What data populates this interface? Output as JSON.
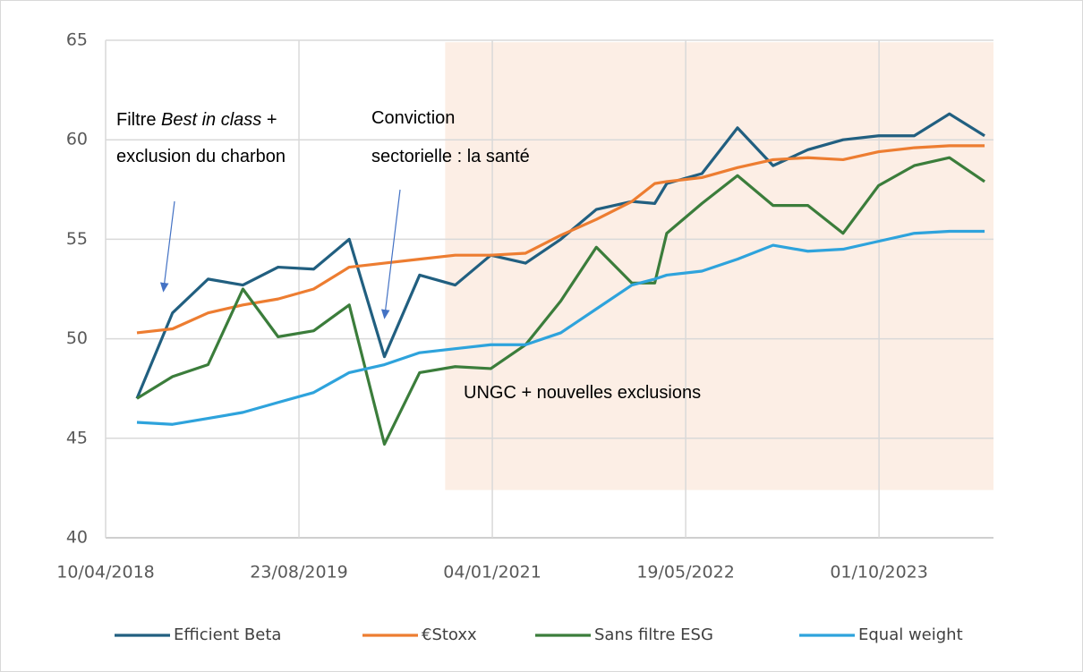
{
  "chart_data": {
    "type": "line",
    "x": [
      "30/06/2018",
      "30/09/2018",
      "31/12/2018",
      "31/03/2019",
      "30/06/2019",
      "30/09/2019",
      "31/12/2019",
      "31/03/2020",
      "30/06/2020",
      "30/09/2020",
      "31/12/2020",
      "31/03/2021",
      "30/06/2021",
      "30/09/2021",
      "31/12/2021",
      "28/02/2022",
      "31/03/2022",
      "30/06/2022",
      "30/09/2022",
      "31/12/2022",
      "31/03/2023",
      "30/06/2023",
      "30/09/2023",
      "31/12/2023",
      "31/03/2024",
      "30/06/2024"
    ],
    "series": [
      {
        "name": "Efficient Beta",
        "color": "#215f80",
        "values": [
          47.0,
          51.3,
          53.0,
          52.7,
          53.6,
          53.5,
          55.0,
          49.1,
          53.2,
          52.7,
          54.2,
          53.8,
          55.0,
          56.5,
          56.9,
          56.8,
          57.8,
          58.3,
          60.6,
          58.7,
          59.5,
          60.0,
          60.2,
          60.2,
          61.3,
          60.2
        ]
      },
      {
        "name": "€Stoxx",
        "color": "#ed7d31",
        "values": [
          50.3,
          50.5,
          51.3,
          51.7,
          52.0,
          52.5,
          53.6,
          53.8,
          54.0,
          54.2,
          54.2,
          54.3,
          55.2,
          56.0,
          56.9,
          57.8,
          57.9,
          58.1,
          58.6,
          59.0,
          59.1,
          59.0,
          59.4,
          59.6,
          59.7,
          59.7
        ]
      },
      {
        "name": "Sans filtre ESG",
        "color": "#3b7d3b",
        "values": [
          47.0,
          48.1,
          48.7,
          52.5,
          50.1,
          50.4,
          51.7,
          44.7,
          48.3,
          48.6,
          48.5,
          49.7,
          51.9,
          54.6,
          52.8,
          52.8,
          55.3,
          56.8,
          58.2,
          56.7,
          56.7,
          55.3,
          57.7,
          58.7,
          59.1,
          57.9
        ]
      },
      {
        "name": "Equal weight",
        "color": "#2ea3dc",
        "values": [
          45.8,
          45.7,
          46.0,
          46.3,
          46.8,
          47.3,
          48.3,
          48.7,
          49.3,
          49.5,
          49.7,
          49.7,
          50.3,
          51.5,
          52.7,
          53.0,
          53.2,
          53.4,
          54.0,
          54.7,
          54.4,
          54.5,
          54.9,
          55.3,
          55.4,
          55.4
        ]
      }
    ],
    "xlim": [
      "10/04/2018",
      "23/07/2024"
    ],
    "xticks": [
      "10/04/2018",
      "23/08/2019",
      "04/01/2021",
      "19/05/2022",
      "01/10/2023"
    ],
    "ylim": [
      40,
      65
    ],
    "yticks": [
      40,
      45,
      50,
      55,
      60,
      65
    ],
    "grid": true,
    "legend": "bottom",
    "shaded_region": {
      "x": [
        "04/09/2020",
        "23/07/2024"
      ],
      "y": [
        42.4,
        64.9
      ],
      "color": "#fbebe1"
    },
    "annotations": [
      {
        "lines": [
          [
            "Filtre ",
            "Best in class",
            " +"
          ],
          [
            "exclusion du charbon"
          ]
        ]
      },
      {
        "lines": [
          [
            "Conviction"
          ],
          [
            "sectorielle : la santé"
          ]
        ]
      },
      {
        "lines": [
          [
            "UNGC + nouvelles exclusions"
          ]
        ],
        "color": "#ed7d31"
      }
    ]
  }
}
